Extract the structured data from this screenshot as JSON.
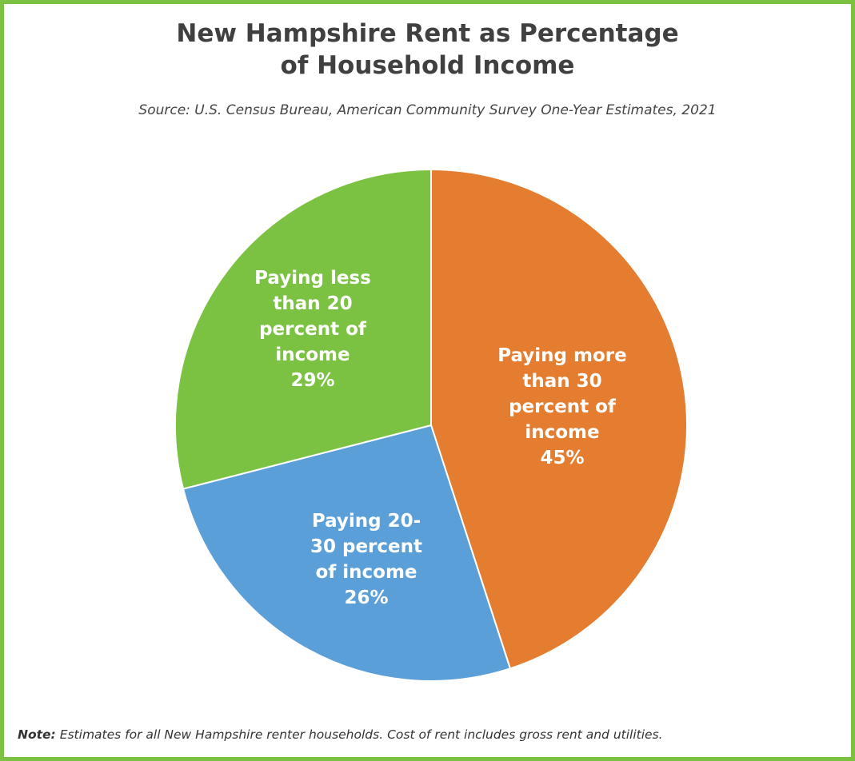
{
  "header": {
    "title_line1": "New Hampshire Rent as Percentage",
    "title_line2": "of Household Income",
    "source": "Source: U.S. Census Bureau, American Community Survey One-Year Estimates, 2021"
  },
  "footer": {
    "note_label": "Note:",
    "note_text": "Estimates for all New Hampshire renter households. Cost of rent includes gross rent and utilities."
  },
  "colors": {
    "frame": "#7cc242",
    "more_than_30": "#e47d2f",
    "between_20_30": "#5b9fd9",
    "less_than_20": "#7cc242"
  },
  "chart_data": {
    "type": "pie",
    "title": "New Hampshire Rent as Percentage of Household Income",
    "slices": [
      {
        "label_lines": [
          "Paying more",
          "than 30",
          "percent of",
          "income",
          "45%"
        ],
        "value": 45,
        "color": "#e47d2f"
      },
      {
        "label_lines": [
          "Paying 20-",
          "30 percent",
          "of income",
          "26%"
        ],
        "value": 26,
        "color": "#5b9fd9"
      },
      {
        "label_lines": [
          "Paying less",
          "than 20",
          "percent of",
          "income",
          "29%"
        ],
        "value": 29,
        "color": "#7cc242"
      }
    ]
  }
}
